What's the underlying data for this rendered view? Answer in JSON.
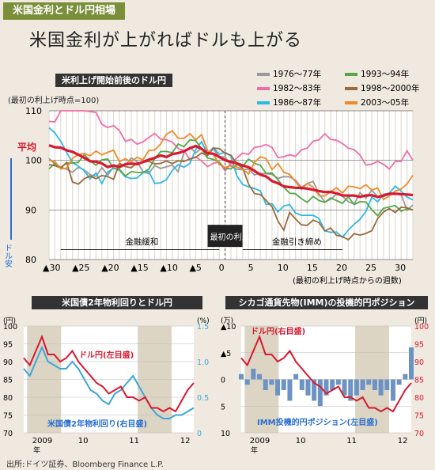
{
  "tag": "米国金利とドル円相場",
  "headline": "米国金利が上がればドルも上がる",
  "source": "出所:ドイツ証券、Bloomberg Finance L.P.",
  "colors": {
    "avg": "#d8182f",
    "jgb": "#3aa6dc",
    "bg": "#efe9df",
    "shade": "#ddd5c4"
  },
  "chart_data": [
    {
      "type": "line",
      "title": "米利上げ開始前後のドル円",
      "ylabel": "(最初の利上げ時点=100)",
      "xlabel": "(最初の利上げ時点からの週数)",
      "ylim": [
        80,
        110
      ],
      "xlim": [
        -30,
        32
      ],
      "y_ticks": [
        "110",
        "100",
        "90",
        "80"
      ],
      "x_ticks": [
        "▲30",
        "▲25",
        "▲20",
        "▲15",
        "▲10",
        "▲5",
        "0",
        "5",
        "10",
        "15",
        "20",
        "25",
        "30"
      ],
      "yen_strong_label": "ドル安",
      "avg_label": "平均",
      "annotations": {
        "easing": "金融緩和",
        "first_hike": "最初の利上げ",
        "tightening": "金融引き締め"
      },
      "series": [
        {
          "name": "1976〜77年",
          "color": "#999999"
        },
        {
          "name": "1982〜83年",
          "color": "#f06ea8"
        },
        {
          "name": "1986〜87年",
          "color": "#2fb8e6"
        },
        {
          "name": "1993〜94年",
          "color": "#52a84a"
        },
        {
          "name": "1998〜2000年",
          "color": "#9a6a3c"
        },
        {
          "name": "2003〜05年",
          "color": "#ef8a2c"
        },
        {
          "name": "平均",
          "color": "#d8182f"
        }
      ],
      "x": [
        -30,
        -25,
        -20,
        -15,
        -10,
        -5,
        0,
        5,
        10,
        15,
        20,
        25,
        30,
        32
      ],
      "values": {
        "1976〜77年": [
          100,
          99,
          97,
          99,
          99,
          101,
          100,
          99,
          95,
          94,
          93,
          92,
          92,
          91
        ],
        "1982〜83年": [
          110,
          109,
          108,
          104,
          103,
          101,
          100,
          101,
          102,
          104,
          102,
          100,
          100,
          100
        ],
        "1986〜87年": [
          106,
          99,
          97,
          96,
          98,
          102,
          100,
          95,
          90,
          88,
          86,
          91,
          93,
          92
        ],
        "1993〜94年": [
          100,
          99,
          99,
          99,
          100,
          103,
          100,
          98,
          95,
          93,
          91,
          91,
          91,
          90
        ],
        "1998〜2000年": [
          99,
          97,
          97,
          98,
          100,
          101,
          100,
          95,
          88,
          86,
          85,
          87,
          90,
          90
        ],
        "2003〜05年": [
          100,
          101,
          100,
          101,
          104,
          104,
          100,
          99,
          97,
          95,
          93,
          93,
          95,
          97
        ],
        "平均": [
          103,
          101,
          99,
          99,
          101,
          103,
          100,
          98,
          95,
          94,
          93,
          93,
          93,
          93
        ]
      }
    },
    {
      "type": "line",
      "title": "米国債2年物利回りとドル円",
      "left_axis": {
        "ticks": [
          "100",
          "95",
          "90",
          "85",
          "80",
          "75",
          "70"
        ],
        "unit": "(円)",
        "ylim": [
          70,
          100
        ]
      },
      "right_axis": {
        "ticks": [
          "1.5",
          "1.0",
          "0.5",
          "0"
        ],
        "unit": "(%)",
        "ylim": [
          0,
          1.5
        ]
      },
      "x_ticks": [
        "2009",
        "10",
        "11",
        "12"
      ],
      "x_sub": "年",
      "series": [
        {
          "name": "ドル円(左目盛)",
          "color": "#d8182f",
          "axis": "left",
          "values": [
            91,
            89,
            93,
            97,
            92,
            92,
            90,
            91,
            93,
            90,
            88,
            86,
            84,
            83,
            81,
            82,
            83,
            80,
            80,
            79,
            80,
            77,
            77,
            76,
            77,
            76,
            79,
            82,
            84
          ]
        },
        {
          "name": "米国債2年物利回り(右目盛)",
          "color": "#3aa6dc",
          "axis": "right",
          "values": [
            0.9,
            0.8,
            1.0,
            1.2,
            1.0,
            0.95,
            0.9,
            0.9,
            1.0,
            0.9,
            0.75,
            0.6,
            0.55,
            0.45,
            0.4,
            0.55,
            0.6,
            0.7,
            0.8,
            0.65,
            0.5,
            0.35,
            0.25,
            0.2,
            0.2,
            0.25,
            0.25,
            0.3,
            0.35
          ]
        }
      ]
    },
    {
      "type": "bar",
      "title": "シカゴ通貨先物(IMM)の投機的円ポジション",
      "left_axis": {
        "ticks": [
          "▲10",
          "▲5",
          "0",
          "5",
          "10"
        ],
        "unit": "(万)",
        "ylim": [
          -10,
          10
        ],
        "inverted": true
      },
      "right_axis": {
        "ticks": [
          "100",
          "95",
          "90",
          "85",
          "80",
          "75",
          "70"
        ],
        "unit": "(円)",
        "ylim": [
          70,
          100
        ]
      },
      "x_ticks": [
        "2009",
        "10",
        "11",
        "12"
      ],
      "x_sub": "年",
      "series": [
        {
          "name": "ドル円(右目盛)",
          "color": "#d8182f",
          "type": "line",
          "values": [
            91,
            89,
            93,
            97,
            92,
            92,
            90,
            91,
            93,
            90,
            88,
            86,
            84,
            83,
            81,
            82,
            83,
            80,
            80,
            79,
            80,
            77,
            77,
            76,
            77,
            76,
            79,
            82,
            84
          ]
        },
        {
          "name": "IMM投機的円ポジション(左目盛)",
          "color": "#6d93c4",
          "type": "bar",
          "values": [
            -1,
            1,
            -2,
            -1,
            2,
            1,
            3,
            2,
            4,
            -1,
            2,
            3,
            4,
            5,
            3,
            2,
            1,
            3,
            4,
            3,
            2,
            1,
            2,
            3,
            2,
            4,
            1,
            -1,
            -6
          ]
        }
      ]
    }
  ]
}
